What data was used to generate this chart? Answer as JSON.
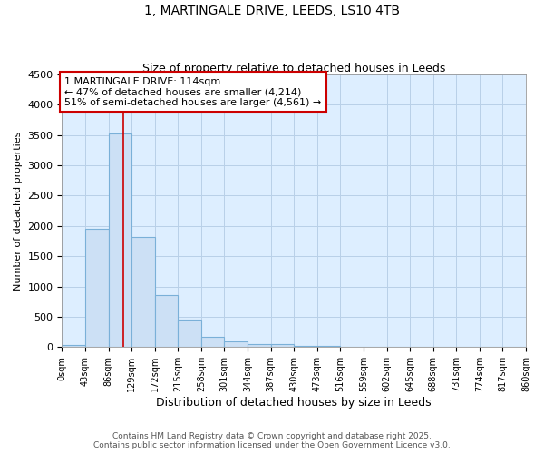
{
  "title1": "1, MARTINGALE DRIVE, LEEDS, LS10 4TB",
  "title2": "Size of property relative to detached houses in Leeds",
  "xlabel": "Distribution of detached houses by size in Leeds",
  "ylabel": "Number of detached properties",
  "bar_color": "#cce0f5",
  "bar_edge_color": "#7ab0d8",
  "bin_edges": [
    0,
    43,
    86,
    129,
    172,
    215,
    258,
    301,
    344,
    387,
    430,
    473,
    516,
    559,
    602,
    645,
    688,
    731,
    774,
    817,
    860
  ],
  "bar_heights": [
    30,
    1950,
    3530,
    1820,
    860,
    460,
    175,
    100,
    55,
    45,
    25,
    15,
    5,
    2,
    1,
    1,
    0,
    0,
    0,
    0
  ],
  "red_line_x": 114,
  "annotation_line1": "1 MARTINGALE DRIVE: 114sqm",
  "annotation_line2": "← 47% of detached houses are smaller (4,214)",
  "annotation_line3": "51% of semi-detached houses are larger (4,561) →",
  "annotation_box_color": "#cc0000",
  "annotation_bg": "#ffffff",
  "vline_color": "#cc0000",
  "grid_color": "#b8d0e8",
  "bg_color": "#ddeeff",
  "fig_bg": "#ffffff",
  "footer_line1": "Contains HM Land Registry data © Crown copyright and database right 2025.",
  "footer_line2": "Contains public sector information licensed under the Open Government Licence v3.0.",
  "xlim": [
    0,
    860
  ],
  "ylim": [
    0,
    4500
  ],
  "yticks": [
    0,
    500,
    1000,
    1500,
    2000,
    2500,
    3000,
    3500,
    4000,
    4500
  ],
  "tick_labels": [
    "0sqm",
    "43sqm",
    "86sqm",
    "129sqm",
    "172sqm",
    "215sqm",
    "258sqm",
    "301sqm",
    "344sqm",
    "387sqm",
    "430sqm",
    "473sqm",
    "516sqm",
    "559sqm",
    "602sqm",
    "645sqm",
    "688sqm",
    "731sqm",
    "774sqm",
    "817sqm",
    "860sqm"
  ]
}
